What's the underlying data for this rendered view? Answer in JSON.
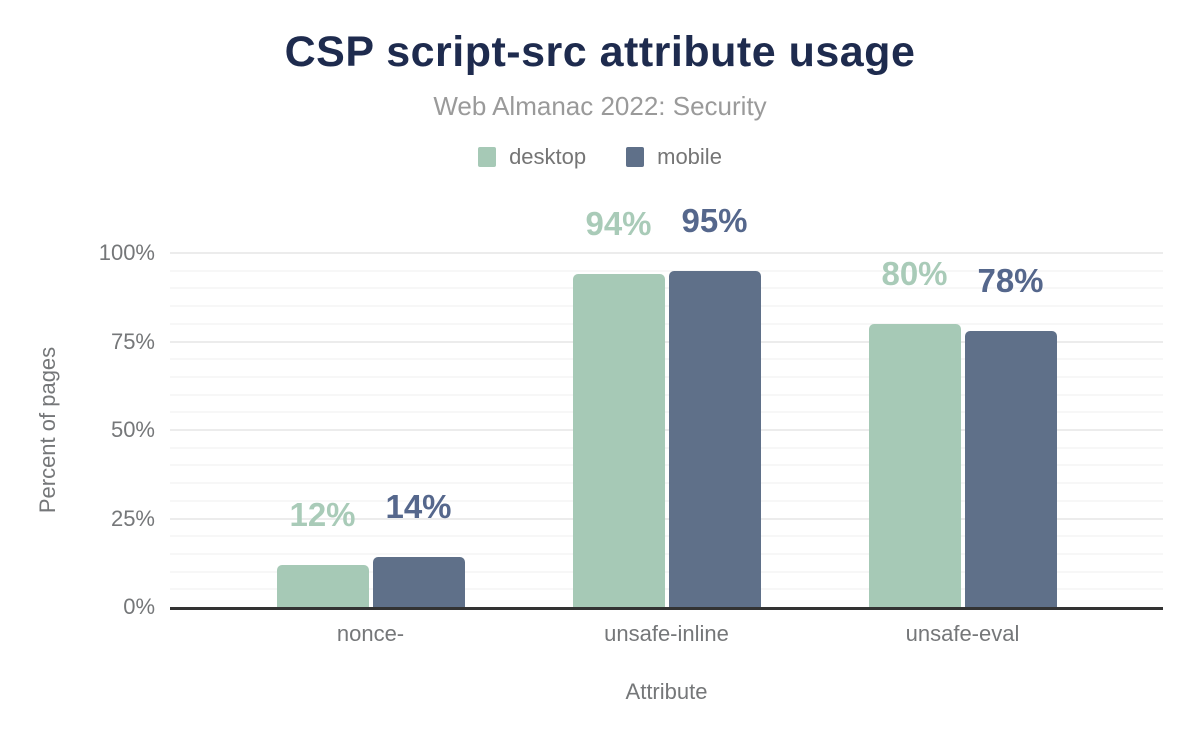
{
  "chart_data": {
    "type": "bar",
    "title": "CSP script-src attribute usage",
    "subtitle": "Web Almanac 2022: Security",
    "categories": [
      "nonce-",
      "unsafe-inline",
      "unsafe-eval"
    ],
    "series": [
      {
        "name": "desktop",
        "values": [
          12,
          94,
          80
        ],
        "data_labels": [
          "12%",
          "94%",
          "80%"
        ],
        "color": "#a6c9b6",
        "label_color": "#a9cbb8"
      },
      {
        "name": "mobile",
        "values": [
          14,
          95,
          78
        ],
        "data_labels": [
          "14%",
          "95%",
          "78%"
        ],
        "color": "#5f7089",
        "label_color": "#55678c"
      }
    ],
    "xlabel": "Attribute",
    "ylabel": "Percent of pages",
    "ylim": [
      0,
      100
    ],
    "yticks": [
      0,
      25,
      50,
      75,
      100
    ],
    "ytick_labels": [
      "0%",
      "25%",
      "50%",
      "75%",
      "100%"
    ],
    "minor_grid_step": 5,
    "grid": true,
    "legend_position": "top"
  },
  "colors": {
    "title": "#1e2b4e",
    "subtitle": "#9a9a9a",
    "axis_text": "#757779",
    "axis_line": "#333333",
    "grid_major": "#ececec",
    "grid_minor": "#f7f7f7",
    "background": "#ffffff"
  }
}
